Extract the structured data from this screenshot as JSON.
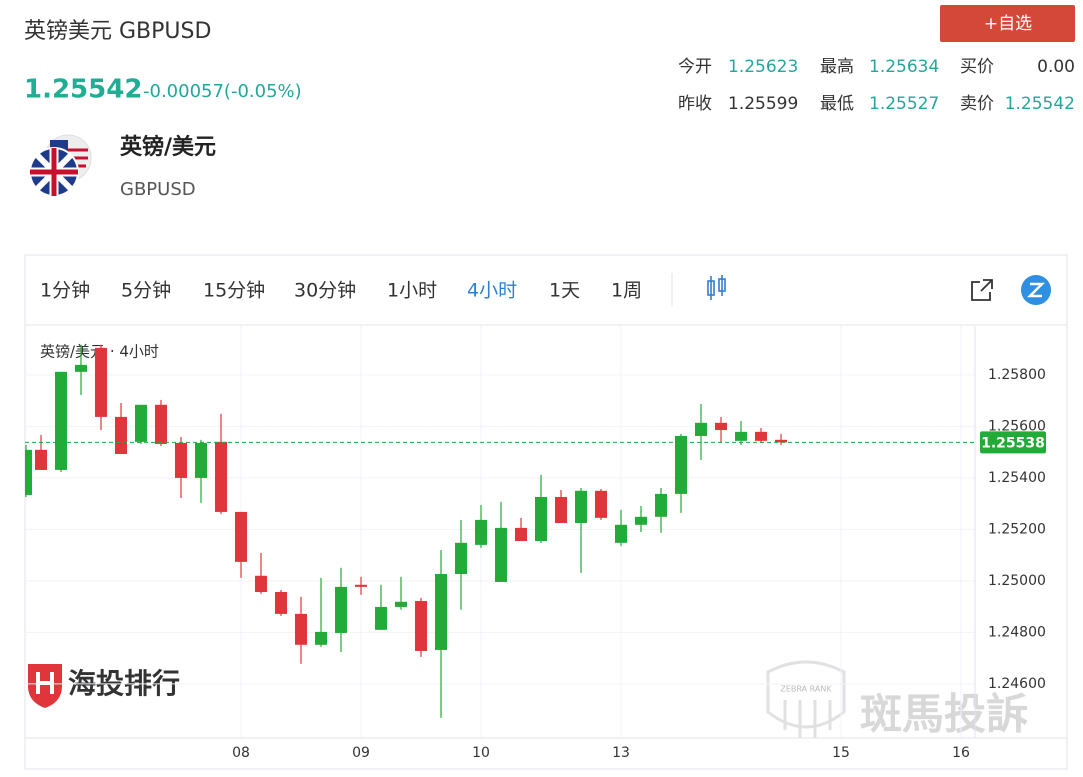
{
  "header": {
    "title": "英镑美元 GBPUSD",
    "price": "1.25542",
    "change": "-0.00057(-0.05%)",
    "button": "+自选",
    "name": "英镑/美元",
    "code": "GBPUSD",
    "quotes": [
      [
        {
          "label": "今开",
          "value": "1.25623",
          "color": "#26a69a"
        },
        {
          "label": "最高",
          "value": "1.25634",
          "color": "#26a69a"
        },
        {
          "label": "买价",
          "value": "0.00",
          "color": "#333333"
        }
      ],
      [
        {
          "label": "昨收",
          "value": "1.25599",
          "color": "#333333"
        },
        {
          "label": "最低",
          "value": "1.25527",
          "color": "#26a69a"
        },
        {
          "label": "卖价",
          "value": "1.25542",
          "color": "#26a69a"
        }
      ]
    ]
  },
  "toolbar": {
    "intervals": [
      "1分钟",
      "5分钟",
      "15分钟",
      "30分钟",
      "1小时",
      "4小时",
      "1天",
      "1周"
    ],
    "active": 5
  },
  "watermarks": {
    "left": "海投排行",
    "right": "斑馬投訴",
    "badge": "ZEBRA RANK"
  },
  "chart_data": {
    "type": "candlestick",
    "legend": "英镑/美元 · 4小时",
    "up_color": "#22ab38",
    "down_color": "#e0353b",
    "open": [
      1.25334,
      1.25509,
      1.25431,
      1.25812,
      1.25905,
      1.25637,
      1.2554,
      1.25684,
      1.25536,
      1.254,
      1.2554,
      1.25268,
      1.2502,
      1.24957,
      1.24872,
      1.24752,
      1.24798,
      1.24985,
      1.2481,
      1.24899,
      1.24922,
      1.24732,
      1.25027,
      1.2514,
      1.24996,
      1.25206,
      1.25155,
      1.25326,
      1.25225,
      1.2535,
      1.25148,
      1.25218,
      1.25249,
      1.25338,
      1.25563,
      1.25614,
      1.25544,
      1.25579,
      1.25548
    ],
    "high": [
      1.25528,
      1.25567,
      1.25812,
      1.25917,
      1.25917,
      1.25691,
      1.25684,
      1.25703,
      1.25559,
      1.25548,
      1.25649,
      1.25268,
      1.25109,
      1.24965,
      1.24938,
      1.25012,
      1.25051,
      1.25016,
      1.24985,
      1.25016,
      1.24934,
      1.2512,
      1.25237,
      1.25295,
      1.25307,
      1.25245,
      1.25412,
      1.25353,
      1.25361,
      1.25357,
      1.25276,
      1.25291,
      1.25361,
      1.25571,
      1.25687,
      1.25637,
      1.25621,
      1.25594,
      1.25571
    ],
    "low": [
      1.25326,
      1.25431,
      1.25423,
      1.25722,
      1.25586,
      1.25493,
      1.25532,
      1.25524,
      1.25322,
      1.25303,
      1.2526,
      1.25012,
      1.2495,
      1.24864,
      1.24678,
      1.24744,
      1.24724,
      1.24946,
      1.2481,
      1.24888,
      1.24705,
      1.24468,
      1.24888,
      1.25128,
      1.24996,
      1.25155,
      1.25148,
      1.25225,
      1.25031,
      1.25237,
      1.25136,
      1.2519,
      1.25187,
      1.25264,
      1.2547,
      1.25536,
      1.25528,
      1.25536,
      1.25528
    ],
    "close": [
      1.25509,
      1.25431,
      1.25812,
      1.25839,
      1.25637,
      1.25493,
      1.25684,
      1.25532,
      1.254,
      1.25536,
      1.25268,
      1.25074,
      1.24957,
      1.24872,
      1.24752,
      1.24802,
      1.24977,
      1.24977,
      1.24899,
      1.24919,
      1.24728,
      1.25027,
      1.25148,
      1.25237,
      1.25206,
      1.25155,
      1.25326,
      1.25225,
      1.2535,
      1.25245,
      1.25218,
      1.25249,
      1.25338,
      1.25563,
      1.25614,
      1.25586,
      1.25579,
      1.25544,
      1.25538
    ],
    "last_price": 1.25538,
    "ylim": [
      1.2439,
      1.2599
    ],
    "yticks": [
      {
        "value": 1.246,
        "label": "1.24600"
      },
      {
        "value": 1.248,
        "label": "1.24800"
      },
      {
        "value": 1.25,
        "label": "1.25000"
      },
      {
        "value": 1.252,
        "label": "1.25200"
      },
      {
        "value": 1.254,
        "label": "1.25400"
      },
      {
        "value": 1.256,
        "label": "1.25600"
      },
      {
        "value": 1.258,
        "label": "1.25800"
      }
    ],
    "xlim": [
      0.2,
      47.7
    ],
    "xticks": [
      {
        "value": 11,
        "label": "08"
      },
      {
        "value": 17,
        "label": "09"
      },
      {
        "value": 23,
        "label": "10"
      },
      {
        "value": 30,
        "label": "13"
      },
      {
        "value": 41,
        "label": "15"
      },
      {
        "value": 47,
        "label": "16"
      }
    ],
    "grid": true
  }
}
